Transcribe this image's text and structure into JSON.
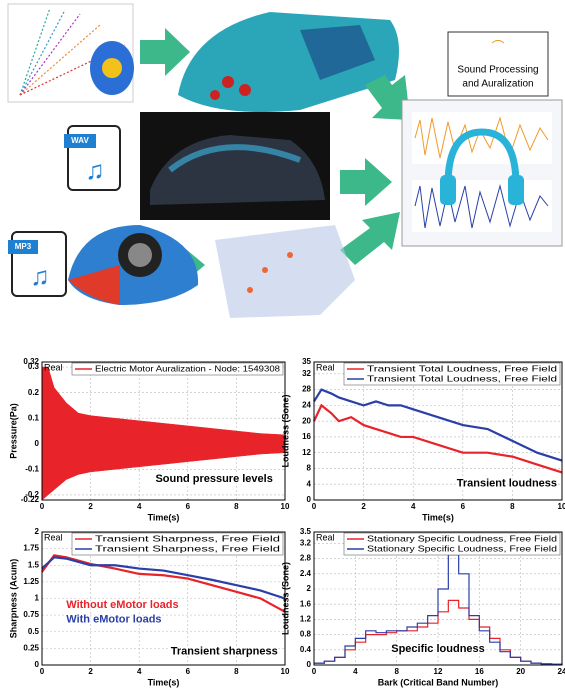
{
  "illustration": {
    "box_lines": [
      "Sound Processing",
      "and Auralization"
    ],
    "wav": "WAV",
    "mp3": "MP3"
  },
  "chart_data": [
    {
      "type": "band",
      "corner_label": "Real",
      "xlabel": "Time(s)",
      "ylabel": "Pressure(Pa)",
      "xlim": [
        0,
        10
      ],
      "xticks": [
        0,
        2,
        4,
        6,
        8,
        10
      ],
      "ylim": [
        -0.22,
        0.32
      ],
      "yticks": [
        -0.22,
        -0.2,
        -0.1,
        0,
        0.1,
        0.2,
        0.3,
        0.32
      ],
      "grid": true,
      "x": [
        0,
        0.25,
        0.5,
        1,
        1.5,
        2,
        3,
        4,
        5,
        6,
        7,
        8,
        9,
        10
      ],
      "series": [
        {
          "name": "Electric Motor Auralization - Node: 1549308",
          "color": "#e8232a",
          "upper": [
            0.3,
            0.3,
            0.22,
            0.16,
            0.12,
            0.11,
            0.1,
            0.09,
            0.08,
            0.07,
            0.06,
            0.05,
            0.04,
            0.035
          ],
          "lower": [
            -0.22,
            -0.2,
            -0.18,
            -0.14,
            -0.12,
            -0.11,
            -0.1,
            -0.09,
            -0.08,
            -0.07,
            -0.06,
            -0.05,
            -0.04,
            -0.035
          ]
        }
      ],
      "annotations": [
        {
          "text": "Sound pressure levels",
          "color": "#000000"
        }
      ]
    },
    {
      "type": "line",
      "corner_label": "Real",
      "xlabel": "Time(s)",
      "ylabel": "Loudness (Sone)",
      "xlim": [
        0,
        10
      ],
      "xticks": [
        0,
        2,
        4,
        6,
        8,
        10
      ],
      "ylim": [
        0,
        35
      ],
      "yticks": [
        0,
        4,
        8,
        12,
        16,
        20,
        24,
        28,
        32,
        35
      ],
      "grid": true,
      "x": [
        0,
        0.3,
        0.7,
        1,
        1.5,
        2,
        2.5,
        3,
        3.5,
        4,
        5,
        6,
        7,
        8,
        9,
        10
      ],
      "series": [
        {
          "name": "Transient Total Loudness, Free Field",
          "color": "#e8232a",
          "values": [
            20,
            24,
            22,
            20,
            21,
            19,
            18,
            17,
            16,
            16,
            14,
            12,
            12,
            11,
            9,
            7
          ]
        },
        {
          "name": "Transient Total Loudness, Free Field",
          "color": "#2a3fa8",
          "values": [
            25,
            28,
            27,
            26,
            25,
            24,
            25,
            24,
            24,
            23,
            21,
            19,
            18,
            15,
            12,
            10
          ]
        }
      ],
      "annotations": [
        {
          "text": "Transient loudness",
          "color": "#000000"
        }
      ]
    },
    {
      "type": "line",
      "corner_label": "Real",
      "xlabel": "Time(s)",
      "ylabel": "Sharpness (Acum)",
      "xlim": [
        0,
        10
      ],
      "xticks": [
        0,
        2,
        4,
        6,
        8,
        10
      ],
      "ylim": [
        0,
        2
      ],
      "yticks": [
        0,
        0.25,
        0.5,
        0.75,
        1,
        1.25,
        1.5,
        1.75,
        2
      ],
      "grid": true,
      "x": [
        0,
        0.5,
        1,
        2,
        3,
        4,
        5,
        6,
        7,
        8,
        9,
        10
      ],
      "series": [
        {
          "name": "Transient Sharpness, Free Field",
          "color": "#e8232a",
          "values": [
            1.4,
            1.65,
            1.62,
            1.52,
            1.45,
            1.37,
            1.35,
            1.3,
            1.2,
            1.1,
            1.0,
            0.8
          ]
        },
        {
          "name": "Transient Sharpness, Free Field",
          "color": "#2a3fa8",
          "values": [
            1.45,
            1.62,
            1.6,
            1.5,
            1.5,
            1.45,
            1.42,
            1.35,
            1.28,
            1.2,
            1.12,
            1.0
          ]
        }
      ],
      "annotations": [
        {
          "text": "Without eMotor loads",
          "color": "#e8232a"
        },
        {
          "text": "With eMotor loads",
          "color": "#2a3fa8"
        },
        {
          "text": "Transient sharpness",
          "color": "#000000"
        }
      ]
    },
    {
      "type": "line",
      "step": true,
      "corner_label": "Real",
      "xlabel": "Bark (Critical Band Number)",
      "ylabel": "Loudness (Sone)",
      "xlim": [
        0,
        24
      ],
      "xticks": [
        0,
        4,
        8,
        12,
        16,
        20,
        24
      ],
      "ylim": [
        0,
        3.5
      ],
      "yticks": [
        0,
        0.4,
        0.8,
        1.2,
        1.6,
        2,
        2.4,
        2.8,
        3.2,
        3.5
      ],
      "grid": true,
      "x": [
        0,
        1,
        2,
        3,
        4,
        5,
        6,
        7,
        8,
        9,
        10,
        11,
        12,
        13,
        14,
        15,
        16,
        17,
        18,
        19,
        20,
        21,
        22,
        23,
        24
      ],
      "series": [
        {
          "name": "Stationary Specific Loudness, Free Field",
          "color": "#e8232a",
          "values": [
            0.05,
            0.1,
            0.2,
            0.4,
            0.6,
            0.8,
            0.8,
            0.85,
            0.9,
            0.9,
            1.0,
            1.1,
            1.4,
            1.7,
            1.5,
            1.2,
            1.0,
            0.7,
            0.4,
            0.2,
            0.1,
            0.05,
            0.03,
            0.02,
            0.01
          ]
        },
        {
          "name": "Stationary Specific Loudness, Free Field",
          "color": "#2a3fa8",
          "values": [
            0.05,
            0.1,
            0.2,
            0.5,
            0.7,
            0.9,
            0.85,
            0.9,
            0.9,
            1.0,
            1.1,
            1.3,
            2.0,
            2.9,
            2.4,
            1.3,
            0.9,
            0.6,
            0.35,
            0.2,
            0.1,
            0.05,
            0.03,
            0.02,
            0.01
          ]
        }
      ],
      "annotations": [
        {
          "text": "Specific loudness",
          "color": "#000000"
        }
      ]
    }
  ]
}
